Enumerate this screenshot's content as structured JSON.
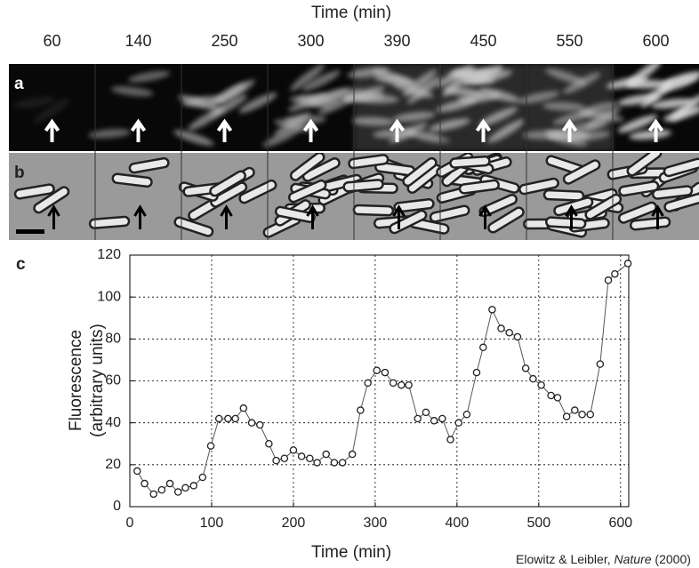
{
  "top_title": "Time (min)",
  "time_labels": [
    60,
    140,
    250,
    300,
    390,
    450,
    550,
    600
  ],
  "panel_labels": [
    "a",
    "b"
  ],
  "chart_data": {
    "type": "line",
    "panel_label": "c",
    "x_label": "Time (min)",
    "y_label": [
      "Fluorescence",
      "(arbitrary units)"
    ],
    "x": [
      9,
      18,
      29,
      39,
      49,
      59,
      68,
      78,
      89,
      99,
      109,
      120,
      129,
      139,
      149,
      159,
      170,
      179,
      189,
      200,
      210,
      220,
      229,
      240,
      250,
      260,
      272,
      282,
      291,
      302,
      312,
      322,
      332,
      341,
      352,
      362,
      372,
      382,
      392,
      402,
      412,
      424,
      432,
      443,
      454,
      464,
      474,
      484,
      493,
      503,
      515,
      523,
      534,
      544,
      553,
      563,
      575,
      585,
      593,
      609
    ],
    "series": [
      {
        "color": "#555555",
        "values": [
          17,
          11,
          6,
          8,
          11,
          7,
          9,
          10,
          14,
          29,
          42,
          42,
          42,
          47,
          40,
          39,
          30,
          22,
          23,
          27,
          24,
          23,
          21,
          25,
          21,
          21,
          25,
          46,
          59,
          65,
          64,
          59,
          58,
          58,
          42,
          45,
          41,
          42,
          32,
          40,
          44,
          64,
          76,
          94,
          85,
          83,
          81,
          66,
          61,
          58,
          53,
          52,
          43,
          46,
          44,
          44,
          68,
          108,
          111,
          116
        ]
      }
    ],
    "xlim": [
      0,
      610
    ],
    "ylim": [
      0,
      120
    ],
    "xticks": [
      0,
      100,
      200,
      300,
      400,
      500,
      600
    ],
    "yticks": [
      0,
      20,
      40,
      60,
      80,
      100,
      120
    ],
    "grid": true
  },
  "citation": {
    "authors": "Elowitz & Leibler,",
    "journal": "Nature",
    "year": "(2000)"
  }
}
